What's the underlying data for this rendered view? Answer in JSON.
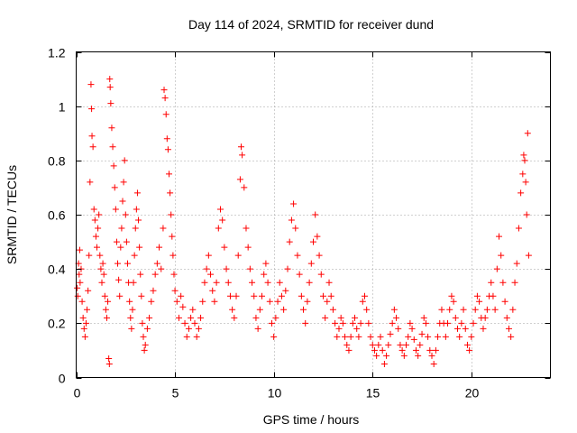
{
  "chart_data": {
    "type": "scatter",
    "title": "Day 114 of 2024, SRMTID for receiver dund",
    "xlabel": "GPS time / hours",
    "ylabel": "SRMTID / TECUs",
    "xlim": [
      0,
      24
    ],
    "ylim": [
      0,
      1.2
    ],
    "x_ticks": [
      0,
      5,
      10,
      15,
      20
    ],
    "y_ticks": [
      0,
      0.2,
      0.4,
      0.6,
      0.8,
      1,
      1.2
    ],
    "x_tick_labels": [
      "0",
      "5",
      "10",
      "15",
      "20"
    ],
    "y_tick_labels": [
      "0",
      "0.2",
      "0.4",
      "0.6",
      "0.8",
      "1",
      "1.2"
    ],
    "grid": true,
    "marker": "plus",
    "series": [
      {
        "name": "SRMTID",
        "color": "#ff0000",
        "points": [
          [
            0.05,
            0.33
          ],
          [
            0.08,
            0.3
          ],
          [
            0.12,
            0.42
          ],
          [
            0.15,
            0.38
          ],
          [
            0.18,
            0.47
          ],
          [
            0.2,
            0.35
          ],
          [
            0.25,
            0.4
          ],
          [
            0.3,
            0.28
          ],
          [
            0.35,
            0.22
          ],
          [
            0.4,
            0.18
          ],
          [
            0.45,
            0.15
          ],
          [
            0.5,
            0.2
          ],
          [
            0.55,
            0.25
          ],
          [
            0.6,
            0.32
          ],
          [
            0.65,
            0.45
          ],
          [
            0.7,
            0.72
          ],
          [
            0.75,
            1.08
          ],
          [
            0.78,
            0.99
          ],
          [
            0.8,
            0.89
          ],
          [
            0.85,
            0.85
          ],
          [
            0.9,
            0.62
          ],
          [
            0.95,
            0.58
          ],
          [
            1.0,
            0.52
          ],
          [
            1.05,
            0.48
          ],
          [
            1.1,
            0.55
          ],
          [
            1.15,
            0.6
          ],
          [
            1.2,
            0.45
          ],
          [
            1.25,
            0.4
          ],
          [
            1.3,
            0.35
          ],
          [
            1.35,
            0.42
          ],
          [
            1.4,
            0.38
          ],
          [
            1.45,
            0.3
          ],
          [
            1.5,
            0.25
          ],
          [
            1.55,
            0.22
          ],
          [
            1.6,
            0.28
          ],
          [
            1.65,
            0.07
          ],
          [
            1.68,
            0.05
          ],
          [
            1.7,
            1.1
          ],
          [
            1.72,
            1.07
          ],
          [
            1.75,
            1.01
          ],
          [
            1.8,
            0.92
          ],
          [
            1.85,
            0.85
          ],
          [
            1.9,
            0.78
          ],
          [
            1.95,
            0.7
          ],
          [
            2.0,
            0.62
          ],
          [
            2.05,
            0.5
          ],
          [
            2.1,
            0.42
          ],
          [
            2.15,
            0.36
          ],
          [
            2.2,
            0.3
          ],
          [
            2.25,
            0.48
          ],
          [
            2.3,
            0.55
          ],
          [
            2.35,
            0.65
          ],
          [
            2.4,
            0.72
          ],
          [
            2.45,
            0.8
          ],
          [
            2.5,
            0.6
          ],
          [
            2.55,
            0.5
          ],
          [
            2.6,
            0.42
          ],
          [
            2.65,
            0.35
          ],
          [
            2.7,
            0.28
          ],
          [
            2.75,
            0.22
          ],
          [
            2.8,
            0.18
          ],
          [
            2.85,
            0.25
          ],
          [
            2.9,
            0.35
          ],
          [
            2.95,
            0.45
          ],
          [
            3.0,
            0.55
          ],
          [
            3.05,
            0.62
          ],
          [
            3.1,
            0.68
          ],
          [
            3.15,
            0.58
          ],
          [
            3.2,
            0.48
          ],
          [
            3.25,
            0.38
          ],
          [
            3.3,
            0.3
          ],
          [
            3.35,
            0.2
          ],
          [
            3.4,
            0.15
          ],
          [
            3.45,
            0.1
          ],
          [
            3.5,
            0.12
          ],
          [
            3.6,
            0.18
          ],
          [
            3.7,
            0.22
          ],
          [
            3.8,
            0.28
          ],
          [
            3.9,
            0.32
          ],
          [
            4.0,
            0.38
          ],
          [
            4.1,
            0.42
          ],
          [
            4.2,
            0.48
          ],
          [
            4.3,
            0.4
          ],
          [
            4.4,
            0.55
          ],
          [
            4.45,
            1.06
          ],
          [
            4.5,
            1.03
          ],
          [
            4.55,
            0.97
          ],
          [
            4.6,
            0.88
          ],
          [
            4.65,
            0.84
          ],
          [
            4.7,
            0.75
          ],
          [
            4.75,
            0.68
          ],
          [
            4.8,
            0.6
          ],
          [
            4.85,
            0.52
          ],
          [
            4.9,
            0.45
          ],
          [
            4.95,
            0.38
          ],
          [
            5.0,
            0.32
          ],
          [
            5.1,
            0.28
          ],
          [
            5.2,
            0.22
          ],
          [
            5.3,
            0.3
          ],
          [
            5.4,
            0.26
          ],
          [
            5.5,
            0.2
          ],
          [
            5.6,
            0.15
          ],
          [
            5.7,
            0.18
          ],
          [
            5.8,
            0.22
          ],
          [
            5.9,
            0.25
          ],
          [
            6.0,
            0.2
          ],
          [
            6.1,
            0.15
          ],
          [
            6.2,
            0.18
          ],
          [
            6.3,
            0.22
          ],
          [
            6.4,
            0.28
          ],
          [
            6.5,
            0.35
          ],
          [
            6.6,
            0.4
          ],
          [
            6.7,
            0.45
          ],
          [
            6.8,
            0.38
          ],
          [
            6.9,
            0.32
          ],
          [
            7.0,
            0.28
          ],
          [
            7.1,
            0.35
          ],
          [
            7.2,
            0.55
          ],
          [
            7.3,
            0.62
          ],
          [
            7.4,
            0.58
          ],
          [
            7.5,
            0.48
          ],
          [
            7.6,
            0.4
          ],
          [
            7.7,
            0.35
          ],
          [
            7.8,
            0.3
          ],
          [
            7.9,
            0.25
          ],
          [
            8.0,
            0.22
          ],
          [
            8.1,
            0.3
          ],
          [
            8.2,
            0.45
          ],
          [
            8.3,
            0.73
          ],
          [
            8.35,
            0.85
          ],
          [
            8.4,
            0.82
          ],
          [
            8.5,
            0.7
          ],
          [
            8.6,
            0.55
          ],
          [
            8.7,
            0.48
          ],
          [
            8.8,
            0.4
          ],
          [
            8.9,
            0.35
          ],
          [
            9.0,
            0.3
          ],
          [
            9.1,
            0.22
          ],
          [
            9.2,
            0.18
          ],
          [
            9.3,
            0.25
          ],
          [
            9.4,
            0.3
          ],
          [
            9.5,
            0.38
          ],
          [
            9.6,
            0.42
          ],
          [
            9.7,
            0.35
          ],
          [
            9.8,
            0.28
          ],
          [
            9.9,
            0.2
          ],
          [
            10.0,
            0.15
          ],
          [
            10.1,
            0.22
          ],
          [
            10.2,
            0.28
          ],
          [
            10.3,
            0.35
          ],
          [
            10.4,
            0.3
          ],
          [
            10.5,
            0.25
          ],
          [
            10.6,
            0.32
          ],
          [
            10.7,
            0.4
          ],
          [
            10.8,
            0.5
          ],
          [
            10.9,
            0.58
          ],
          [
            11.0,
            0.64
          ],
          [
            11.1,
            0.55
          ],
          [
            11.2,
            0.45
          ],
          [
            11.3,
            0.38
          ],
          [
            11.4,
            0.3
          ],
          [
            11.5,
            0.25
          ],
          [
            11.6,
            0.2
          ],
          [
            11.7,
            0.28
          ],
          [
            11.8,
            0.35
          ],
          [
            11.9,
            0.42
          ],
          [
            12.0,
            0.5
          ],
          [
            12.1,
            0.6
          ],
          [
            12.2,
            0.52
          ],
          [
            12.3,
            0.45
          ],
          [
            12.4,
            0.38
          ],
          [
            12.5,
            0.3
          ],
          [
            12.6,
            0.22
          ],
          [
            12.7,
            0.28
          ],
          [
            12.8,
            0.35
          ],
          [
            12.9,
            0.3
          ],
          [
            13.0,
            0.25
          ],
          [
            13.1,
            0.2
          ],
          [
            13.2,
            0.15
          ],
          [
            13.3,
            0.18
          ],
          [
            13.4,
            0.22
          ],
          [
            13.5,
            0.2
          ],
          [
            13.6,
            0.15
          ],
          [
            13.7,
            0.12
          ],
          [
            13.8,
            0.1
          ],
          [
            13.9,
            0.15
          ],
          [
            14.0,
            0.2
          ],
          [
            14.1,
            0.22
          ],
          [
            14.2,
            0.18
          ],
          [
            14.3,
            0.15
          ],
          [
            14.4,
            0.2
          ],
          [
            14.5,
            0.28
          ],
          [
            14.6,
            0.3
          ],
          [
            14.7,
            0.25
          ],
          [
            14.8,
            0.2
          ],
          [
            14.9,
            0.15
          ],
          [
            15.0,
            0.12
          ],
          [
            15.1,
            0.1
          ],
          [
            15.2,
            0.08
          ],
          [
            15.3,
            0.12
          ],
          [
            15.4,
            0.15
          ],
          [
            15.5,
            0.1
          ],
          [
            15.6,
            0.05
          ],
          [
            15.7,
            0.08
          ],
          [
            15.8,
            0.12
          ],
          [
            15.9,
            0.16
          ],
          [
            16.0,
            0.2
          ],
          [
            16.1,
            0.25
          ],
          [
            16.2,
            0.22
          ],
          [
            16.3,
            0.18
          ],
          [
            16.4,
            0.12
          ],
          [
            16.5,
            0.1
          ],
          [
            16.6,
            0.08
          ],
          [
            16.7,
            0.12
          ],
          [
            16.8,
            0.15
          ],
          [
            16.9,
            0.2
          ],
          [
            17.0,
            0.18
          ],
          [
            17.1,
            0.14
          ],
          [
            17.2,
            0.1
          ],
          [
            17.3,
            0.08
          ],
          [
            17.4,
            0.12
          ],
          [
            17.5,
            0.16
          ],
          [
            17.6,
            0.22
          ],
          [
            17.7,
            0.2
          ],
          [
            17.8,
            0.15
          ],
          [
            17.9,
            0.1
          ],
          [
            18.0,
            0.08
          ],
          [
            18.1,
            0.05
          ],
          [
            18.2,
            0.1
          ],
          [
            18.3,
            0.15
          ],
          [
            18.4,
            0.2
          ],
          [
            18.5,
            0.25
          ],
          [
            18.6,
            0.2
          ],
          [
            18.7,
            0.15
          ],
          [
            18.8,
            0.2
          ],
          [
            18.9,
            0.25
          ],
          [
            19.0,
            0.3
          ],
          [
            19.1,
            0.28
          ],
          [
            19.2,
            0.22
          ],
          [
            19.3,
            0.18
          ],
          [
            19.4,
            0.15
          ],
          [
            19.5,
            0.2
          ],
          [
            19.6,
            0.25
          ],
          [
            19.7,
            0.18
          ],
          [
            19.8,
            0.12
          ],
          [
            19.9,
            0.1
          ],
          [
            20.0,
            0.15
          ],
          [
            20.1,
            0.2
          ],
          [
            20.2,
            0.25
          ],
          [
            20.3,
            0.3
          ],
          [
            20.4,
            0.28
          ],
          [
            20.5,
            0.22
          ],
          [
            20.6,
            0.18
          ],
          [
            20.7,
            0.22
          ],
          [
            20.8,
            0.25
          ],
          [
            20.9,
            0.3
          ],
          [
            21.0,
            0.35
          ],
          [
            21.1,
            0.3
          ],
          [
            21.2,
            0.25
          ],
          [
            21.3,
            0.4
          ],
          [
            21.4,
            0.52
          ],
          [
            21.5,
            0.45
          ],
          [
            21.6,
            0.35
          ],
          [
            21.7,
            0.28
          ],
          [
            21.8,
            0.22
          ],
          [
            21.9,
            0.18
          ],
          [
            22.0,
            0.15
          ],
          [
            22.1,
            0.25
          ],
          [
            22.2,
            0.35
          ],
          [
            22.3,
            0.42
          ],
          [
            22.4,
            0.55
          ],
          [
            22.5,
            0.68
          ],
          [
            22.6,
            0.75
          ],
          [
            22.65,
            0.82
          ],
          [
            22.7,
            0.8
          ],
          [
            22.75,
            0.72
          ],
          [
            22.8,
            0.6
          ],
          [
            22.85,
            0.9
          ],
          [
            22.9,
            0.45
          ]
        ]
      }
    ]
  }
}
